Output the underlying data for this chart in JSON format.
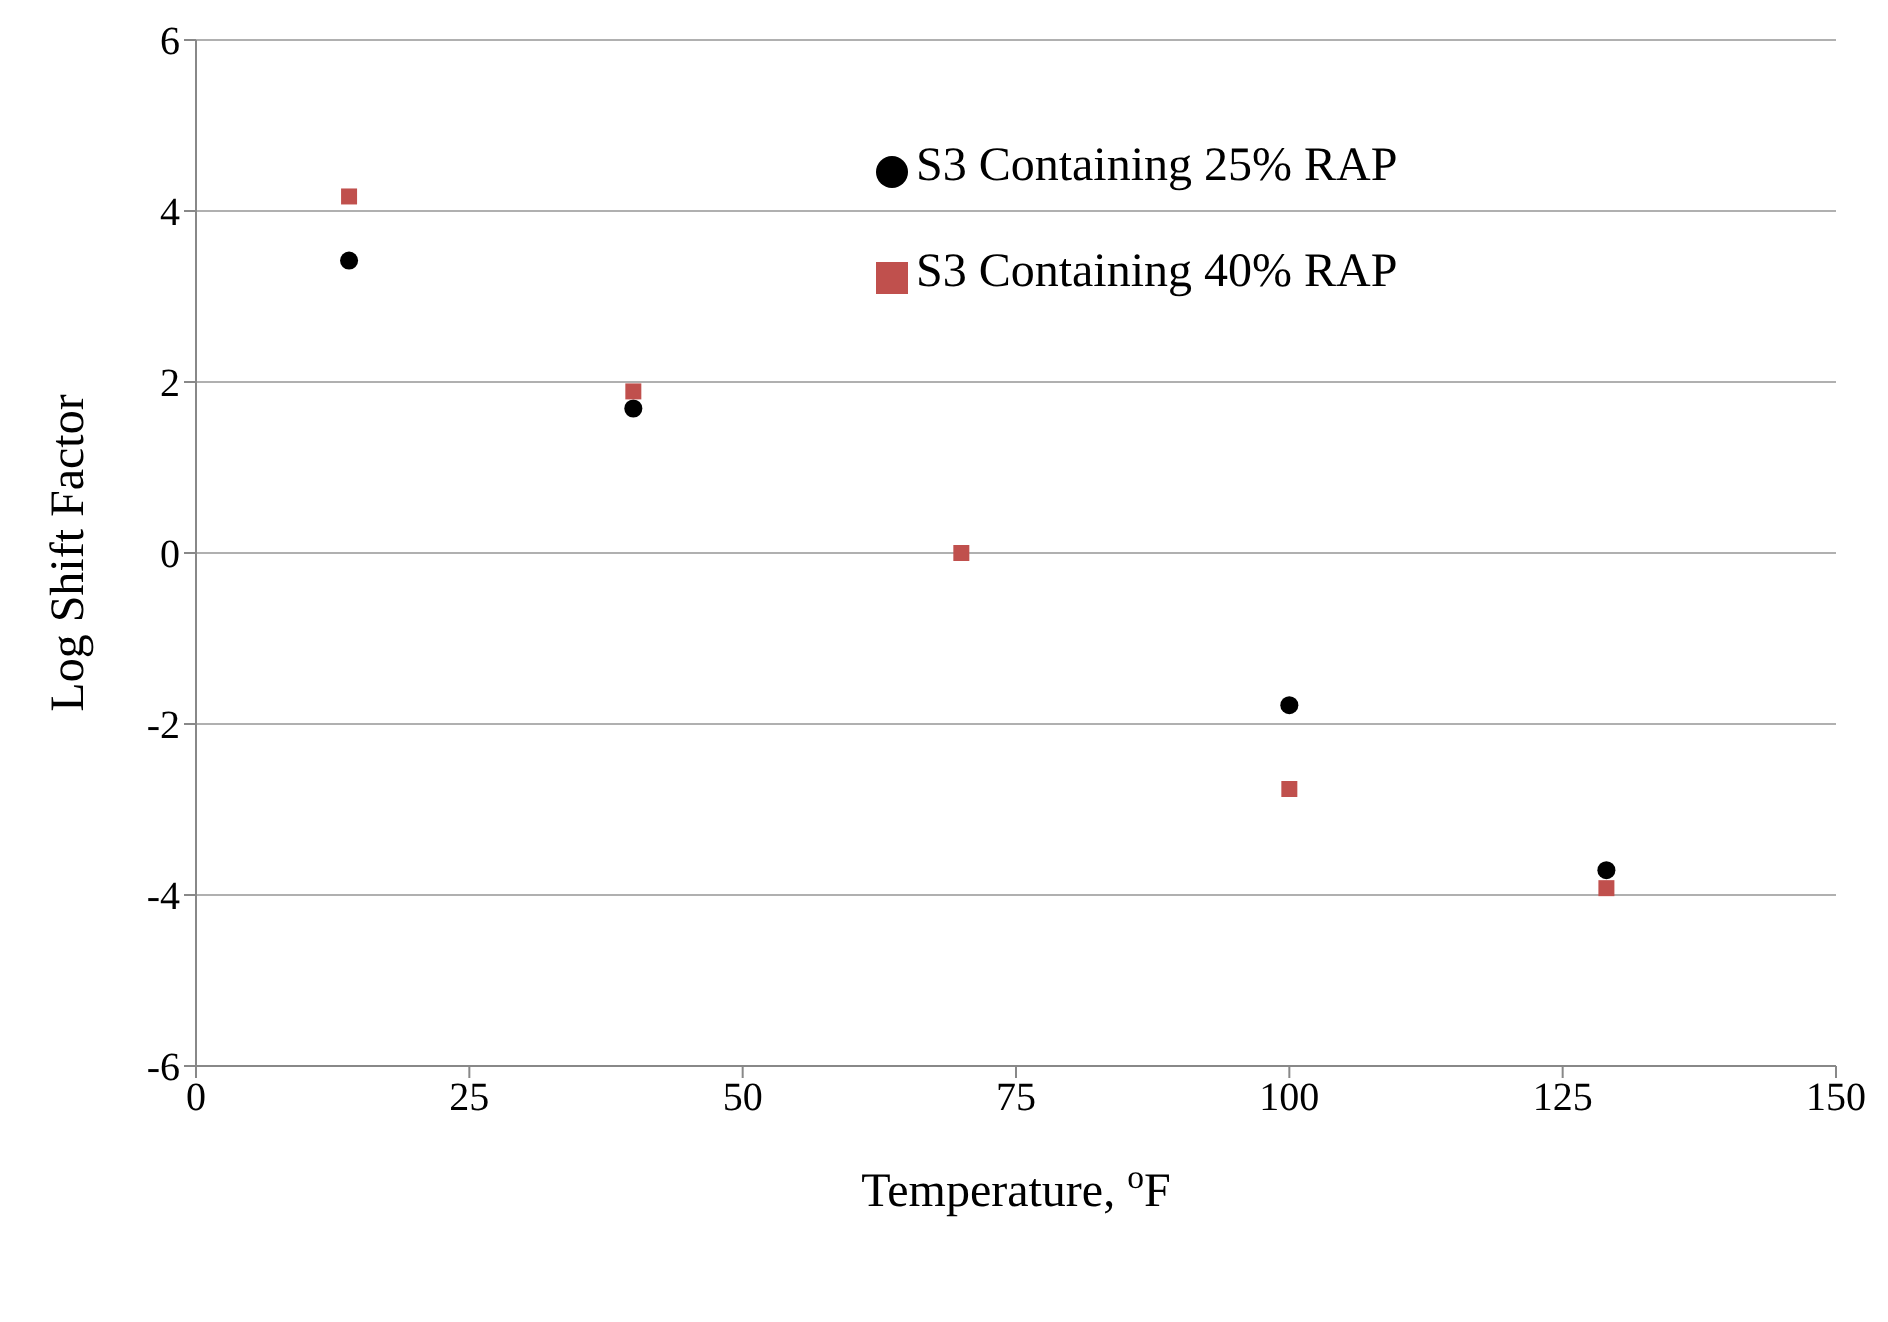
{
  "chart_data": {
    "type": "scatter",
    "xlabel": "Temperature, $^{o}$F",
    "ylabel": "Log Shift Factor",
    "x": [
      14,
      40,
      70,
      100,
      129
    ],
    "series": [
      {
        "name": "S3 Containing 25% RAP",
        "color": "#000000",
        "marker": "circle",
        "values": [
          3.42,
          1.69,
          null,
          -1.78,
          -3.71
        ]
      },
      {
        "name": "S3 Containing 40% RAP",
        "color": "#c0504d",
        "marker": "square",
        "values": [
          4.17,
          1.89,
          0,
          -2.76,
          -3.92
        ]
      }
    ],
    "xlim": [
      0,
      150
    ],
    "xticks": [
      0,
      25,
      50,
      75,
      100,
      125,
      150
    ],
    "ylim": [
      -6,
      6
    ],
    "yticks": [
      -6,
      -4,
      -2,
      0,
      2,
      4,
      6
    ],
    "grid": "y",
    "legend": "top right"
  }
}
